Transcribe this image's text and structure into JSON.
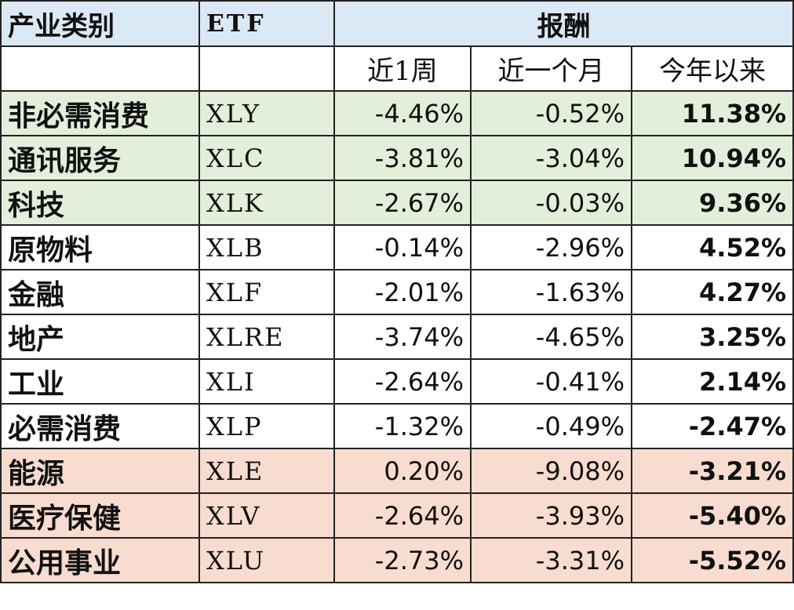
{
  "header": {
    "sector_label": "产业类别",
    "etf_label": "ETF",
    "return_label": "报酬",
    "periods": [
      "近1周",
      "近一个月",
      "今年以来"
    ]
  },
  "colors": {
    "header_bg": "#dbe8f6",
    "top_group_bg": "#e3eedb",
    "bottom_group_bg": "#f8dccf"
  },
  "rows": [
    {
      "sector": "非必需消费",
      "etf": "XLY",
      "week": "-4.46%",
      "month": "-0.52%",
      "ytd": "11.38%",
      "group": "green"
    },
    {
      "sector": "通讯服务",
      "etf": "XLC",
      "week": "-3.81%",
      "month": "-3.04%",
      "ytd": "10.94%",
      "group": "green"
    },
    {
      "sector": "科技",
      "etf": "XLK",
      "week": "-2.67%",
      "month": "-0.03%",
      "ytd": "9.36%",
      "group": "green"
    },
    {
      "sector": "原物料",
      "etf": "XLB",
      "week": "-0.14%",
      "month": "-2.96%",
      "ytd": "4.52%",
      "group": "white"
    },
    {
      "sector": "金融",
      "etf": "XLF",
      "week": "-2.01%",
      "month": "-1.63%",
      "ytd": "4.27%",
      "group": "white"
    },
    {
      "sector": "地产",
      "etf": "XLRE",
      "week": "-3.74%",
      "month": "-4.65%",
      "ytd": "3.25%",
      "group": "white"
    },
    {
      "sector": "工业",
      "etf": "XLI",
      "week": "-2.64%",
      "month": "-0.41%",
      "ytd": "2.14%",
      "group": "white"
    },
    {
      "sector": "必需消费",
      "etf": "XLP",
      "week": "-1.32%",
      "month": "-0.49%",
      "ytd": "-2.47%",
      "group": "white"
    },
    {
      "sector": "能源",
      "etf": "XLE",
      "week": "0.20%",
      "month": "-9.08%",
      "ytd": "-3.21%",
      "group": "red"
    },
    {
      "sector": "医疗保健",
      "etf": "XLV",
      "week": "-2.64%",
      "month": "-3.93%",
      "ytd": "-5.40%",
      "group": "red"
    },
    {
      "sector": "公用事业",
      "etf": "XLU",
      "week": "-2.73%",
      "month": "-3.31%",
      "ytd": "-5.52%",
      "group": "red"
    }
  ]
}
